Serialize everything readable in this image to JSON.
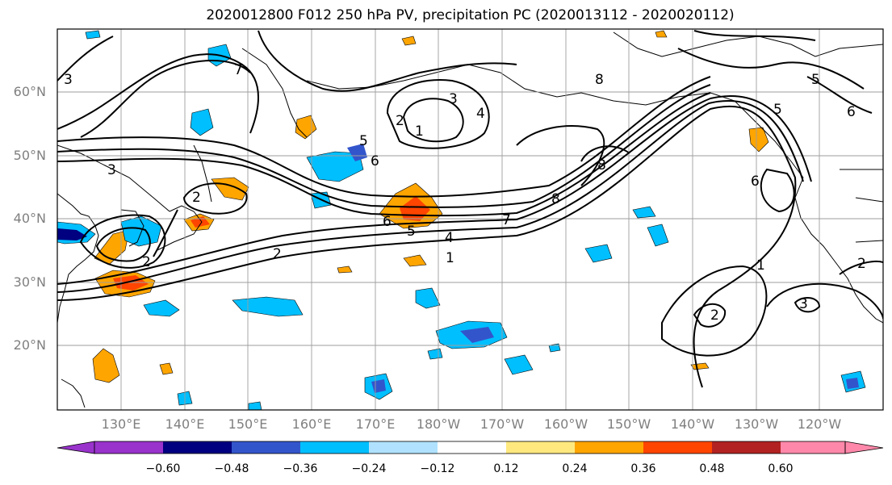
{
  "map": {
    "title": "2020012800 F012 250 hPa PV, precipitation PC (2020013112 - 2020020112)",
    "lat_labels": [
      {
        "label": "60°N",
        "lat": 60
      },
      {
        "label": "50°N",
        "lat": 50
      },
      {
        "label": "40°N",
        "lat": 40
      },
      {
        "label": "30°N",
        "lat": 30
      },
      {
        "label": "20°N",
        "lat": 20
      }
    ],
    "lon_labels": [
      "130°E",
      "140°E",
      "150°E",
      "160°E",
      "170°E",
      "180°W",
      "170°W",
      "160°W",
      "150°W",
      "140°W",
      "130°W",
      "120°W"
    ],
    "contour_labels": [
      "7",
      "3",
      "2",
      "1",
      "3",
      "4",
      "5",
      "6",
      "6",
      "8",
      "8",
      "5",
      "6",
      "8",
      "3",
      "2",
      "2",
      "6",
      "5",
      "4",
      "7",
      "1",
      "2",
      "1",
      "2",
      "3",
      "5",
      "2"
    ],
    "colors": {
      "land": "#ffffff",
      "contour": "#000000",
      "grid": "#9e9e9e"
    }
  },
  "colorbar": {
    "colors": [
      "#9933cc",
      "#000080",
      "#3355cc",
      "#00bfff",
      "#b0e2ff",
      "#ffffff",
      "#ffe97f",
      "#ffa500",
      "#ff4500",
      "#b22222",
      "#ff88aa"
    ],
    "tick_labels": [
      "−0.60",
      "−0.48",
      "−0.36",
      "−0.24",
      "−0.12",
      "0.12",
      "0.24",
      "0.36",
      "0.48",
      "0.60"
    ]
  }
}
